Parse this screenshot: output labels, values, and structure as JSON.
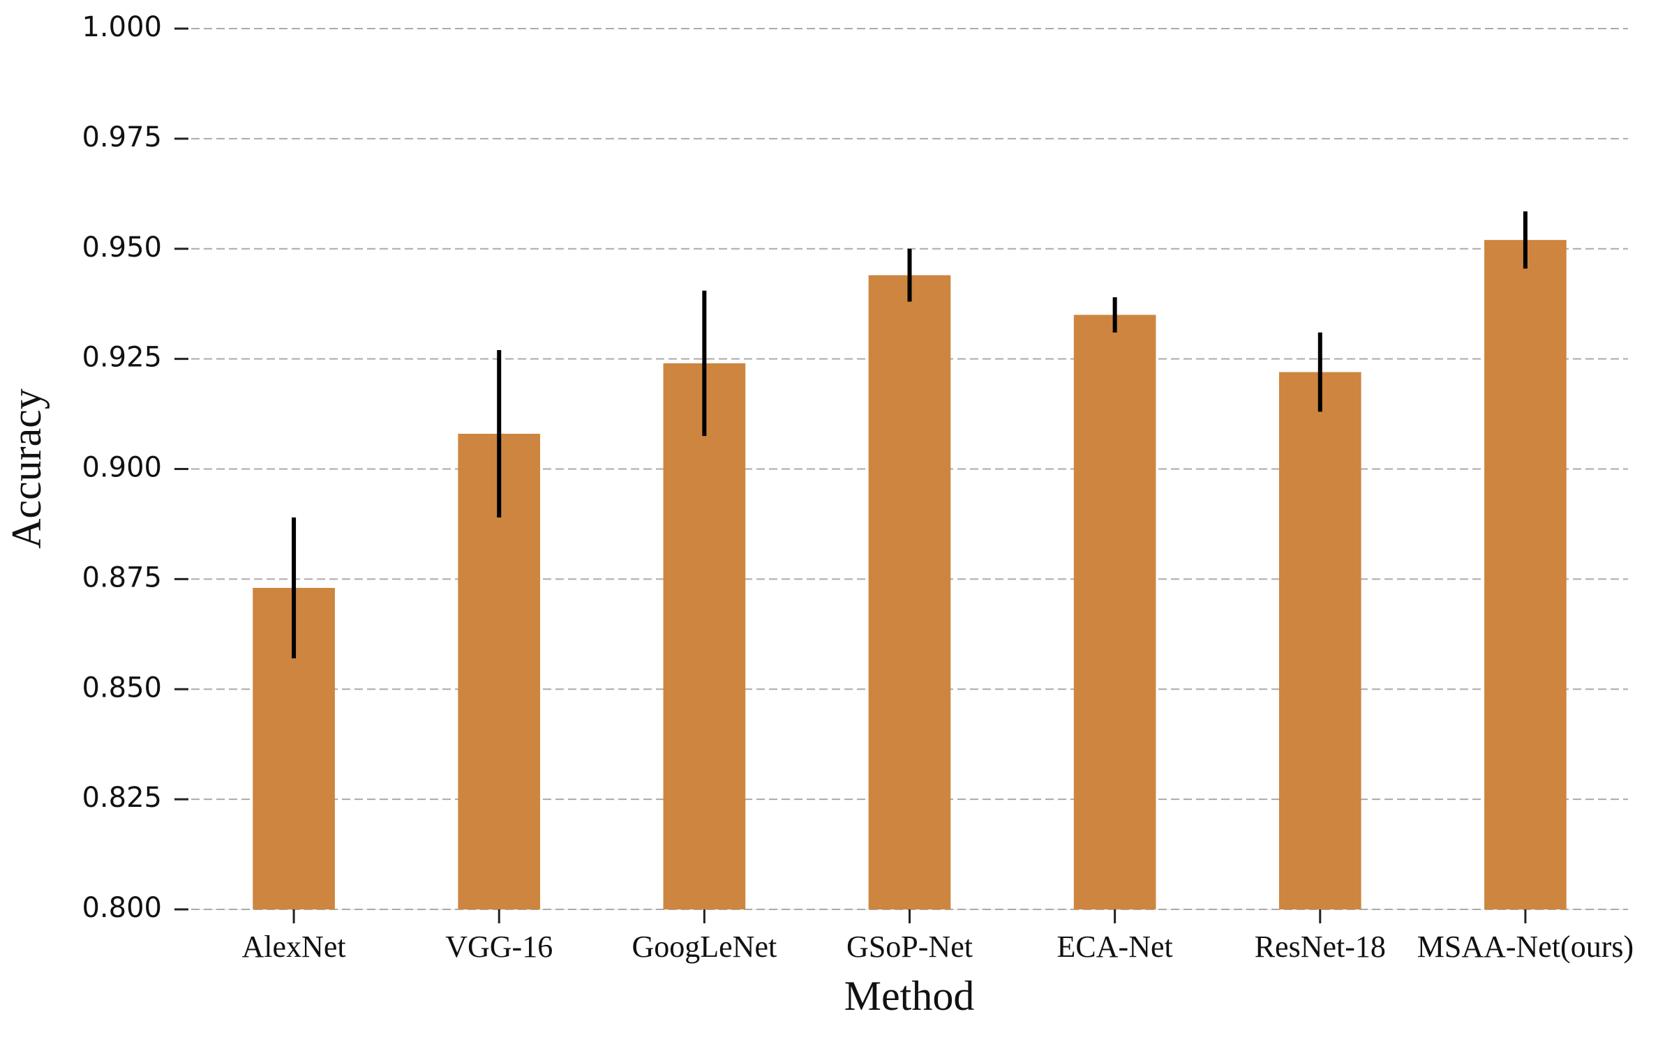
{
  "chart_data": {
    "type": "bar",
    "xlabel": "Method",
    "ylabel": "Accuracy",
    "categories": [
      "AlexNet",
      "VGG-16",
      "GoogLeNet",
      "GSoP-Net",
      "ECA-Net",
      "ResNet-18",
      "MSAA-Net(ours)"
    ],
    "values": [
      0.873,
      0.908,
      0.924,
      0.944,
      0.935,
      0.922,
      0.952
    ],
    "errors": [
      0.016,
      0.019,
      0.0165,
      0.006,
      0.004,
      0.009,
      0.0065
    ],
    "color": "#cd853f",
    "ylim": [
      0.8,
      1.0
    ],
    "yticks": [
      {
        "value": 0.8,
        "label": "0.800"
      },
      {
        "value": 0.825,
        "label": "0.825"
      },
      {
        "value": 0.85,
        "label": "0.850"
      },
      {
        "value": 0.875,
        "label": "0.875"
      },
      {
        "value": 0.9,
        "label": "0.900"
      },
      {
        "value": 0.925,
        "label": "0.925"
      },
      {
        "value": 0.95,
        "label": "0.950"
      },
      {
        "value": 0.975,
        "label": "0.975"
      },
      {
        "value": 1.0,
        "label": "1.000"
      }
    ],
    "grid": true
  }
}
